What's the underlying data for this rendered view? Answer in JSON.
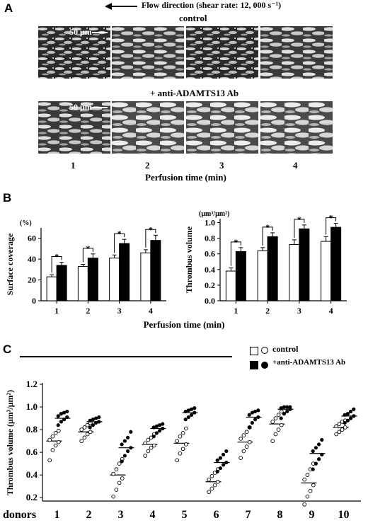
{
  "panelA": {
    "letter": "A",
    "flow_label": "Flow direction (shear rate: 12, 000 s⁻¹)",
    "row1_label": "control",
    "row2_label": "+ anti-ADAMTS13 Ab",
    "scale_label": "50 μm",
    "time_ticks": [
      "1",
      "2",
      "3",
      "4"
    ],
    "xlabel": "Perfusion time (min)",
    "flow_arrow_icon": "left-arrow-icon"
  },
  "panelB": {
    "letter": "B"
  },
  "panelC": {
    "letter": "C"
  },
  "legend": {
    "control": "control",
    "anti": "+anti-ADAMTS13 Ab"
  },
  "chart_data": [
    {
      "type": "bar",
      "title": "",
      "ylabel": "Surface coverage",
      "yunit": "(%)",
      "xlabel": "Perfusion time (min)",
      "categories": [
        "1",
        "2",
        "3",
        "4"
      ],
      "ylim": [
        0,
        70
      ],
      "yticks": [
        0,
        20,
        40,
        60
      ],
      "series": [
        {
          "name": "control",
          "values": [
            23,
            33,
            41,
            46
          ],
          "errors": [
            2,
            2,
            3,
            3
          ],
          "color": "#ffffff"
        },
        {
          "name": "+anti-ADAMTS13 Ab",
          "values": [
            34,
            41,
            55,
            58
          ],
          "errors": [
            3,
            4,
            4,
            5
          ],
          "color": "#000000"
        }
      ],
      "significance": [
        "*",
        "*",
        "*",
        "*"
      ]
    },
    {
      "type": "bar",
      "title": "",
      "ylabel": "Thrombus volume",
      "yunit": "(μm³/μm²)",
      "xlabel": "Perfusion time (min)",
      "categories": [
        "1",
        "2",
        "3",
        "4"
      ],
      "ylim": [
        0,
        1.05
      ],
      "yticks": [
        0,
        0.2,
        0.4,
        0.6,
        0.8,
        1.0
      ],
      "series": [
        {
          "name": "control",
          "values": [
            0.38,
            0.64,
            0.72,
            0.76
          ],
          "errors": [
            0.04,
            0.04,
            0.06,
            0.06
          ],
          "color": "#ffffff"
        },
        {
          "name": "+anti-ADAMTS13 Ab",
          "values": [
            0.63,
            0.82,
            0.92,
            0.94
          ],
          "errors": [
            0.05,
            0.05,
            0.05,
            0.05
          ],
          "color": "#000000"
        }
      ],
      "significance": [
        "*",
        "*",
        "*",
        "*"
      ]
    },
    {
      "type": "scatter",
      "title": "",
      "ylabel": "Thrombus volume (μm³/μm²)",
      "xlabel": "donors",
      "categories": [
        "1",
        "2",
        "3",
        "4",
        "5",
        "6",
        "7",
        "8",
        "9",
        "10"
      ],
      "ylim": [
        0.17,
        1.2
      ],
      "yticks": [
        0.2,
        0.4,
        0.6,
        0.8,
        1.0,
        1.2
      ],
      "series": [
        {
          "name": "control",
          "marker": "open-circle",
          "means": [
            0.7,
            0.78,
            0.4,
            0.67,
            0.68,
            0.34,
            0.69,
            0.85,
            0.33,
            0.82
          ],
          "points": [
            [
              0.53,
              0.62,
              0.66,
              0.69,
              0.71,
              0.74,
              0.77,
              0.79
            ],
            [
              0.7,
              0.73,
              0.76,
              0.78,
              0.8,
              0.82,
              0.84,
              0.86
            ],
            [
              0.21,
              0.27,
              0.33,
              0.37,
              0.41,
              0.45,
              0.5,
              0.54
            ],
            [
              0.57,
              0.61,
              0.64,
              0.66,
              0.68,
              0.71,
              0.73,
              0.76
            ],
            [
              0.53,
              0.59,
              0.63,
              0.67,
              0.7,
              0.74,
              0.77,
              0.81
            ],
            [
              0.25,
              0.28,
              0.31,
              0.34,
              0.36,
              0.39,
              0.42,
              0.45
            ],
            [
              0.55,
              0.61,
              0.65,
              0.69,
              0.72,
              0.75,
              0.78,
              0.82
            ],
            [
              0.7,
              0.76,
              0.8,
              0.84,
              0.87,
              0.9,
              0.93,
              0.96
            ],
            [
              0.14,
              0.21,
              0.26,
              0.31,
              0.36,
              0.4,
              0.45,
              0.5
            ],
            [
              0.76,
              0.78,
              0.8,
              0.82,
              0.83,
              0.85,
              0.87,
              0.88
            ]
          ]
        },
        {
          "name": "+anti-ADAMTS13 Ab",
          "marker": "filled-circle",
          "means": [
            0.9,
            0.87,
            0.64,
            0.81,
            0.95,
            0.51,
            0.91,
            0.98,
            0.59,
            0.92
          ],
          "points": [
            [
              0.84,
              0.87,
              0.89,
              0.91,
              0.92,
              0.94,
              0.95,
              0.96
            ],
            [
              0.82,
              0.84,
              0.86,
              0.87,
              0.88,
              0.89,
              0.9,
              0.91
            ],
            [
              0.52,
              0.57,
              0.61,
              0.64,
              0.67,
              0.7,
              0.73,
              0.78
            ],
            [
              0.74,
              0.77,
              0.79,
              0.81,
              0.82,
              0.83,
              0.84,
              0.85
            ],
            [
              0.89,
              0.91,
              0.93,
              0.95,
              0.96,
              0.97,
              0.98,
              0.99
            ],
            [
              0.43,
              0.46,
              0.49,
              0.51,
              0.53,
              0.55,
              0.58,
              0.61
            ],
            [
              0.82,
              0.86,
              0.89,
              0.91,
              0.93,
              0.95,
              0.96,
              0.97
            ],
            [
              0.9,
              0.94,
              0.96,
              0.98,
              0.99,
              1.0,
              1.0,
              1.0
            ],
            [
              0.45,
              0.5,
              0.54,
              0.58,
              0.61,
              0.64,
              0.67,
              0.71
            ],
            [
              0.86,
              0.88,
              0.9,
              0.92,
              0.93,
              0.94,
              0.96,
              0.98
            ]
          ]
        }
      ]
    }
  ]
}
